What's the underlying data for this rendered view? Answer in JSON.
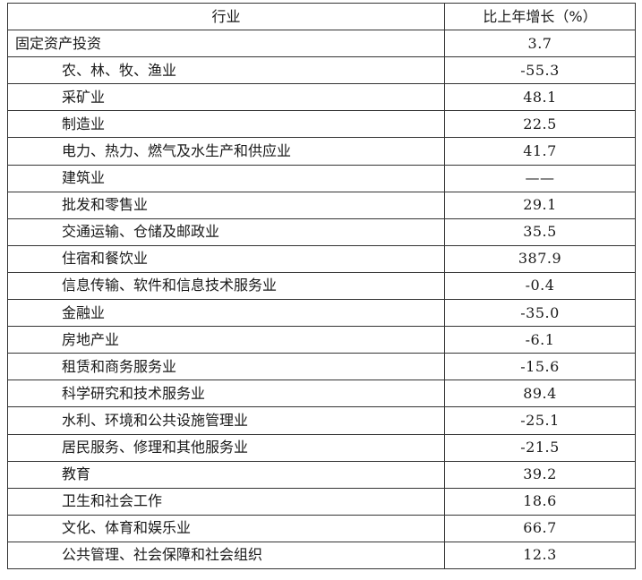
{
  "table": {
    "headers": {
      "industry": "行业",
      "growth": "比上年增长（%）"
    },
    "rows": [
      {
        "industry": "固定资产投资",
        "growth": "3.7",
        "level": 0
      },
      {
        "industry": "农、林、牧、渔业",
        "growth": "-55.3",
        "level": 1
      },
      {
        "industry": "采矿业",
        "growth": "48.1",
        "level": 1
      },
      {
        "industry": "制造业",
        "growth": "22.5",
        "level": 1
      },
      {
        "industry": "电力、热力、燃气及水生产和供应业",
        "growth": "41.7",
        "level": 1
      },
      {
        "industry": "建筑业",
        "growth": "——",
        "level": 1
      },
      {
        "industry": "批发和零售业",
        "growth": "29.1",
        "level": 1
      },
      {
        "industry": "交通运输、仓储及邮政业",
        "growth": "35.5",
        "level": 1
      },
      {
        "industry": "住宿和餐饮业",
        "growth": "387.9",
        "level": 1
      },
      {
        "industry": "信息传输、软件和信息技术服务业",
        "growth": "-0.4",
        "level": 1
      },
      {
        "industry": "金融业",
        "growth": "-35.0",
        "level": 1
      },
      {
        "industry": "房地产业",
        "growth": "-6.1",
        "level": 1
      },
      {
        "industry": "租赁和商务服务业",
        "growth": "-15.6",
        "level": 1
      },
      {
        "industry": "科学研究和技术服务业",
        "growth": "89.4",
        "level": 1
      },
      {
        "industry": "水利、环境和公共设施管理业",
        "growth": "-25.1",
        "level": 1
      },
      {
        "industry": "居民服务、修理和其他服务业",
        "growth": "-21.5",
        "level": 1
      },
      {
        "industry": "教育",
        "growth": "39.2",
        "level": 1
      },
      {
        "industry": "卫生和社会工作",
        "growth": "18.6",
        "level": 1
      },
      {
        "industry": "文化、体育和娱乐业",
        "growth": "66.7",
        "level": 1
      },
      {
        "industry": "公共管理、社会保障和社会组织",
        "growth": "12.3",
        "level": 1
      }
    ]
  }
}
